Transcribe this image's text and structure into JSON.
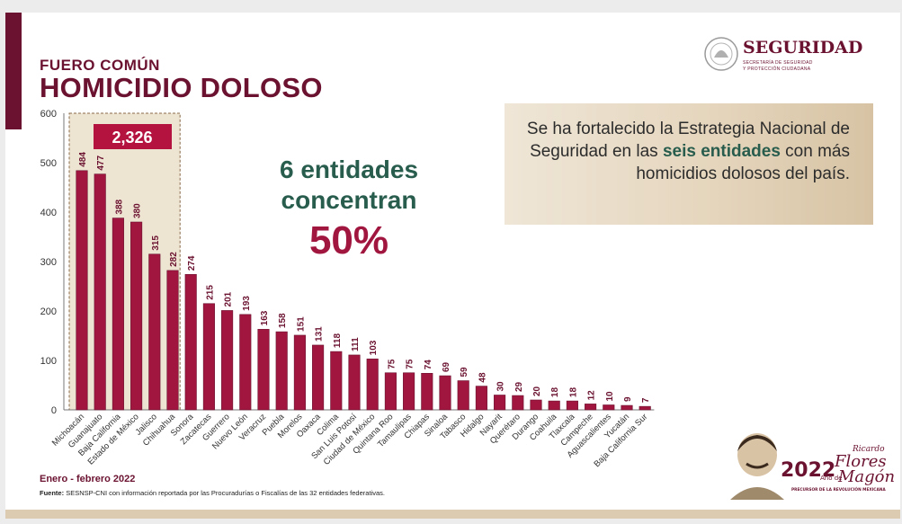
{
  "header": {
    "subtitle": "FUERO COMÚN",
    "title": "HOMICIDIO DOLOSO"
  },
  "logo": {
    "name": "SEGURIDAD",
    "line1": "SECRETARÍA DE SEGURIDAD",
    "line2": "Y PROTECCIÓN CIUDADANA"
  },
  "message": {
    "part1": "Se ha fortalecido la Estrategia Nacional de Seguridad en las ",
    "highlight": "seis entidades",
    "part2": " con más homicidios dolosos del país."
  },
  "callout": {
    "line1": "6 entidades",
    "line2": "concentran",
    "value": "50%"
  },
  "highlight_total": "2,326",
  "footer": {
    "period": "Enero - febrero 2022",
    "source_label": "Fuente:",
    "source_text": "SESNSP-CNI con información reportada por las Procuradurías o Fiscalías de las 32 entidades federativas."
  },
  "emblem": {
    "year": "2022",
    "year_sub": "Año de",
    "name1": "Ricardo",
    "name2": "Flores",
    "name3": "Magón",
    "caption": "PRECURSOR DE LA REVOLUCIÓN MEXICANA"
  },
  "colors": {
    "bar": "#a0163f",
    "bar_dark": "#6b1230",
    "accent_green": "#285c4d",
    "highlight_box": "#b4123f"
  },
  "chart_data": {
    "type": "bar",
    "categories": [
      "Michoacán",
      "Guanajuato",
      "Baja California",
      "Estado de México",
      "Jalisco",
      "Chihuahua",
      "Sonora",
      "Zacatecas",
      "Guerrero",
      "Nuevo León",
      "Veracruz",
      "Puebla",
      "Morelos",
      "Oaxaca",
      "Colima",
      "San Luis Potosí",
      "Ciudad de México",
      "Quintana Roo",
      "Tamaulipas",
      "Chiapas",
      "Sinaloa",
      "Tabasco",
      "Hidalgo",
      "Nayarit",
      "Querétaro",
      "Durango",
      "Coahuila",
      "Tlaxcala",
      "Campeche",
      "Aguascalientes",
      "Yucatán",
      "Baja California Sur"
    ],
    "values": [
      484,
      477,
      388,
      380,
      315,
      282,
      274,
      215,
      201,
      193,
      163,
      158,
      151,
      131,
      118,
      111,
      103,
      75,
      75,
      74,
      69,
      59,
      48,
      30,
      29,
      20,
      18,
      18,
      12,
      10,
      9,
      7
    ],
    "value_labels": [
      "484",
      "477",
      "388",
      "380",
      "315",
      "282",
      "274",
      "215",
      "201",
      "193",
      "163",
      "158",
      "151",
      "131",
      "118",
      "111",
      "103",
      "75",
      "75",
      "74",
      "69",
      "59",
      "48",
      "30",
      "29",
      "20",
      "18",
      "18",
      "12",
      "10",
      "9",
      "7"
    ],
    "ylim": [
      0,
      600
    ],
    "yticks": [
      "0",
      "100",
      "200",
      "300",
      "400",
      "500",
      "600"
    ],
    "highlighted_count": 6,
    "grid": false
  }
}
